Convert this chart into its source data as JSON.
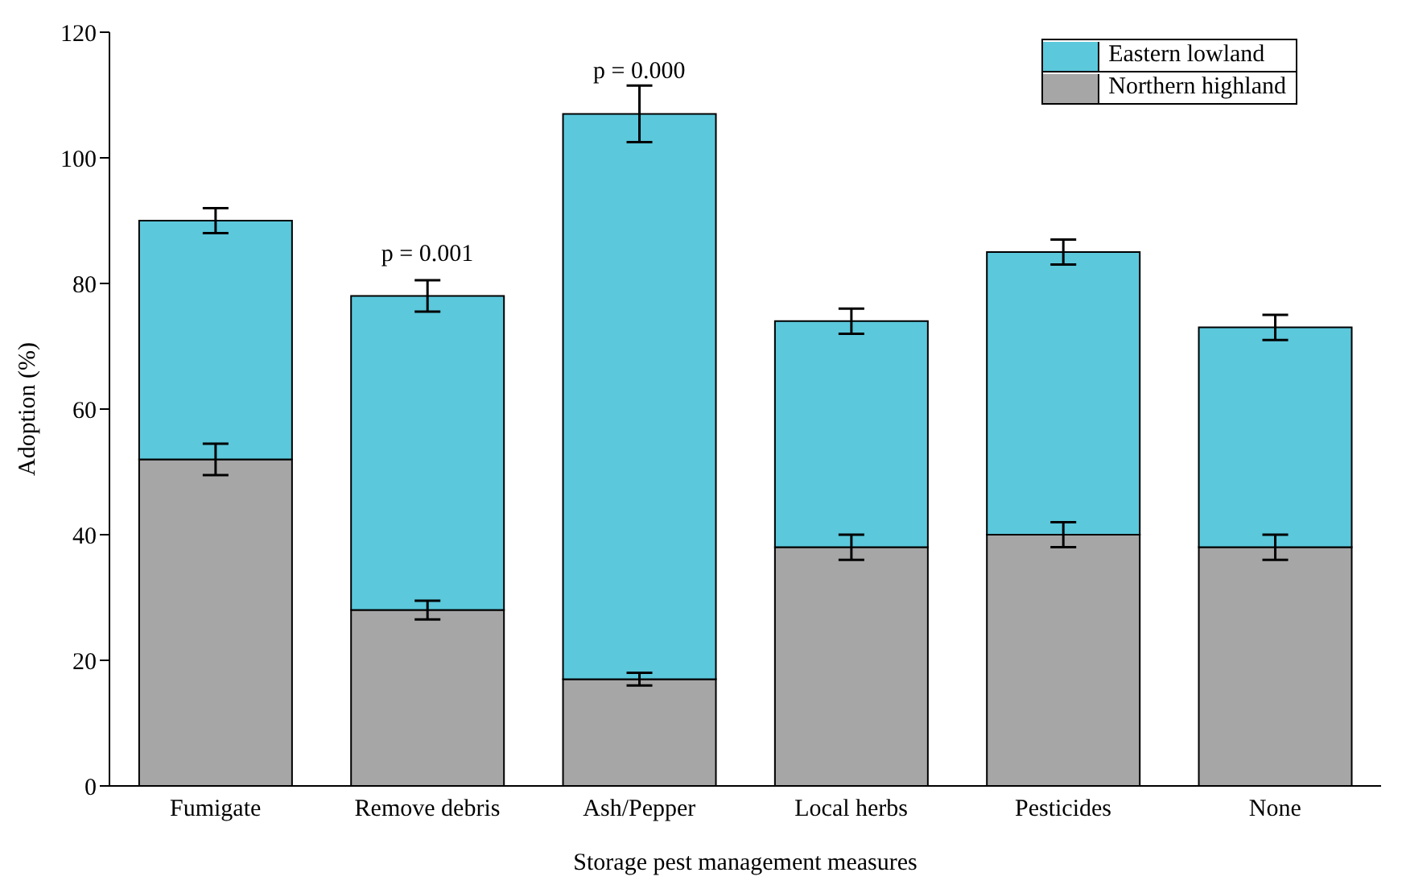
{
  "chart_data": {
    "type": "bar",
    "stacked": true,
    "xlabel": "Storage pest management measures",
    "ylabel": "Adoption (%)",
    "categories": [
      "Fumigate",
      "Remove debris",
      "Ash/Pepper",
      "Local herbs",
      "Pesticides",
      "None"
    ],
    "series": [
      {
        "name": "Northern highland",
        "color": "#a6a6a6",
        "values": [
          52,
          28,
          17,
          38,
          40,
          38
        ],
        "errors": [
          2.5,
          1.5,
          1,
          2,
          2,
          2
        ]
      },
      {
        "name": "Eastern lowland",
        "color": "#5bc8dc",
        "values": [
          38,
          50,
          90,
          36,
          45,
          35
        ],
        "errors": [
          2,
          2.5,
          4.5,
          2,
          2,
          2
        ]
      }
    ],
    "ylim": [
      0,
      120
    ],
    "yticks": [
      0,
      20,
      40,
      60,
      80,
      100,
      120
    ],
    "grid": false,
    "legend": "top right",
    "annotations": [
      {
        "text": "p = 0.001",
        "x": "Remove debris",
        "y": 78
      },
      {
        "text": "p = 0.000",
        "x": "Ash/Pepper",
        "y": 107
      }
    ]
  }
}
